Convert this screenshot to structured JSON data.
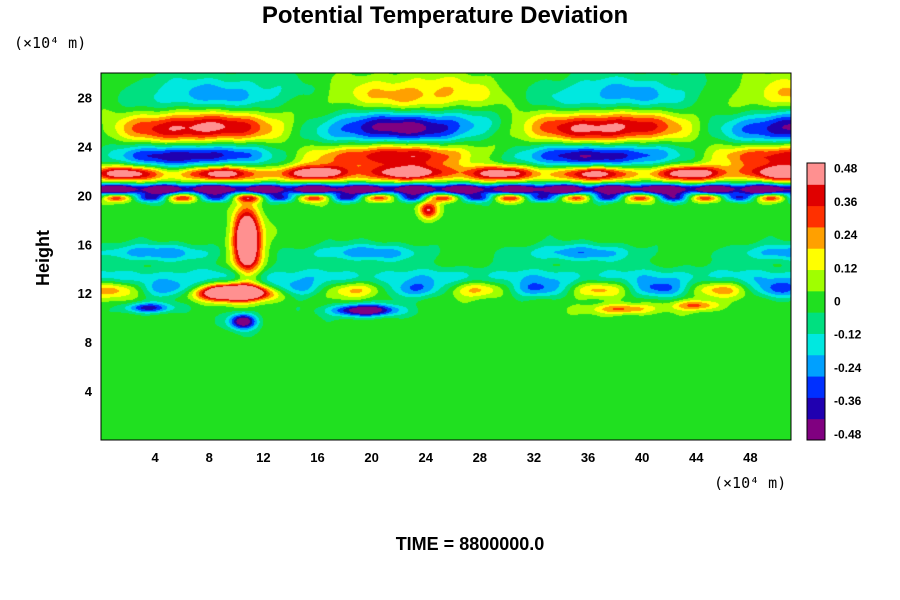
{
  "chart_data": {
    "type": "heatmap",
    "title": "Potential Temperature Deviation",
    "ylabel": "Height",
    "xunit": "(×10⁴ m)",
    "yunit": "(×10⁴ m)",
    "xlim": [
      0,
      51
    ],
    "ylim": [
      0,
      30
    ],
    "xticks": [
      "4",
      "8",
      "12",
      "16",
      "20",
      "24",
      "28",
      "32",
      "36",
      "40",
      "44",
      "48"
    ],
    "yticks": [
      "4",
      "8",
      "12",
      "16",
      "20",
      "24",
      "28"
    ],
    "colorbar": {
      "range": [
        -0.5,
        0.5
      ],
      "ticks": [
        "0.48",
        "0.36",
        "0.24",
        "0.12",
        "0",
        "-0.12",
        "-0.24",
        "-0.36",
        "-0.48"
      ],
      "colors": [
        "#800080",
        "#2000b0",
        "#0030ff",
        "#00a0ff",
        "#00e8e0",
        "#00e080",
        "#20e020",
        "#a0ff00",
        "#ffff00",
        "#ffa000",
        "#ff3000",
        "#e00000",
        "#ff9090"
      ]
    },
    "features": [
      {
        "type": "wave",
        "y_center": 25.5,
        "amplitude": 0.48,
        "wavelength": 30,
        "note": "upper-level oscillation, alternating bands"
      },
      {
        "type": "band",
        "y": 20.5,
        "value": -0.48
      },
      {
        "type": "band",
        "y": 21.5,
        "value": 0.48
      },
      {
        "type": "patch",
        "x": 10.5,
        "y": 16.5,
        "value": 0.48
      },
      {
        "type": "patch",
        "x": 10,
        "y": 12,
        "value": 0.48
      },
      {
        "type": "patch",
        "x": 19,
        "y": 10.5,
        "value": -0.48
      }
    ],
    "footer": "TIME = 8800000.0"
  }
}
